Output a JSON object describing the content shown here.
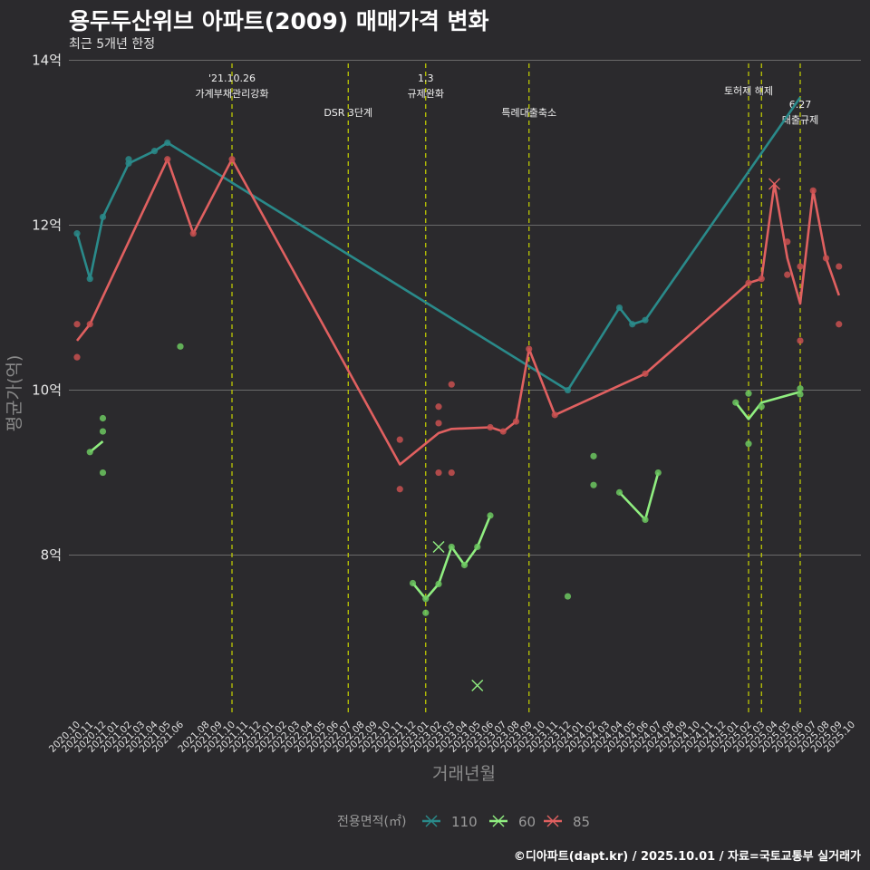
{
  "chart_data": {
    "type": "line",
    "title": "용두두산위브 아파트(2009) 매매가격 변화",
    "subtitle": "최근 5개년 한정",
    "xlabel": "거래년월",
    "ylabel": "평균가(억)",
    "caption": "©디아파트(dapt.kr) / 2025.10.01 / 자료=국토교통부 실거래가",
    "ylim": [
      6.05,
      14.05
    ],
    "yticks": [
      {
        "value": 8,
        "label": "8억"
      },
      {
        "value": 10,
        "label": "10억"
      },
      {
        "value": 12,
        "label": "12억"
      },
      {
        "value": 14,
        "label": "14억"
      }
    ],
    "x_months": [
      "2020.10",
      "2020.11",
      "2020.12",
      "2021.01",
      "2021.02",
      "2021.03",
      "2021.04",
      "2021.05",
      "2021.06",
      "2021.07",
      "2021.08",
      "2021.09",
      "2021.10",
      "2021.11",
      "2021.12",
      "2022.01",
      "2022.02",
      "2022.03",
      "2022.04",
      "2022.05",
      "2022.06",
      "2022.07",
      "2022.08",
      "2022.09",
      "2022.10",
      "2022.11",
      "2022.12",
      "2023.01",
      "2023.02",
      "2023.03",
      "2023.04",
      "2023.05",
      "2023.06",
      "2023.07",
      "2023.08",
      "2023.09",
      "2023.10",
      "2023.11",
      "2023.12",
      "2024.01",
      "2024.02",
      "2024.03",
      "2024.04",
      "2024.05",
      "2024.06",
      "2024.07",
      "2024.08",
      "2024.09",
      "2024.10",
      "2024.11",
      "2024.12",
      "2025.01",
      "2025.02",
      "2025.03",
      "2025.04",
      "2025.05",
      "2025.06",
      "2025.07",
      "2025.08",
      "2025.09",
      "2025.10"
    ],
    "x_tick_labels": [
      "2020.10",
      "2020.11",
      "2020.12",
      "2021.01",
      "2021.02",
      "2021.03",
      "2021.04",
      "2021.05",
      "2021.06",
      "2021.08",
      "2021.09",
      "2021.10",
      "2021.11",
      "2021.12",
      "2022.01",
      "2022.02",
      "2022.03",
      "2022.04",
      "2022.05",
      "2022.06",
      "2022.07",
      "2022.08",
      "2022.09",
      "2022.10",
      "2022.11",
      "2022.12",
      "2023.01",
      "2023.02",
      "2023.03",
      "2023.04",
      "2023.05",
      "2023.06",
      "2023.07",
      "2023.08",
      "2023.09",
      "2023.10",
      "2023.11",
      "2023.12",
      "2024.01",
      "2024.02",
      "2024.03",
      "2024.04",
      "2024.05",
      "2024.06",
      "2024.07",
      "2024.08",
      "2024.09",
      "2024.10",
      "2024.11",
      "2024.12",
      "2025.01",
      "2025.02",
      "2025.03",
      "2025.04",
      "2025.05",
      "2025.06",
      "2025.07",
      "2025.08",
      "2025.09",
      "2025.10"
    ],
    "events": [
      {
        "month": "2021.10",
        "lines": [
          "'21.10.26",
          "가계부채관리강화"
        ],
        "level": 0
      },
      {
        "month": "2022.07",
        "lines": [
          "DSR 3단계"
        ],
        "level": 2
      },
      {
        "month": "2023.01",
        "lines": [
          "1.3",
          "규제완화"
        ],
        "level": 0
      },
      {
        "month": "2023.09",
        "lines": [
          "특례대출축소"
        ],
        "level": 2
      },
      {
        "month": "2025.02",
        "lines": [
          "토허제 해제"
        ],
        "level": 1
      },
      {
        "month": "2025.03",
        "lines": [],
        "level": 1
      },
      {
        "month": "2025.06",
        "lines": [
          "6.27",
          "대출규제"
        ],
        "level": 3
      }
    ],
    "series": [
      {
        "name": "110",
        "color": "#2a8a8a",
        "line": [
          {
            "x": "2020.10",
            "y": 11.9
          },
          {
            "x": "2020.11",
            "y": 11.35
          },
          {
            "x": "2020.12",
            "y": 12.1
          },
          {
            "x": "2021.02",
            "y": 12.75
          },
          {
            "x": "2021.04",
            "y": 12.9
          },
          {
            "x": "2021.05",
            "y": 13.0
          },
          {
            "x": "2023.12",
            "y": 10.0
          },
          {
            "x": "2024.04",
            "y": 11.0
          },
          {
            "x": "2024.05",
            "y": 10.8
          },
          {
            "x": "2024.06",
            "y": 10.85
          },
          {
            "x": "2025.06",
            "y": 13.55
          }
        ],
        "points": [
          {
            "x": "2020.10",
            "y": 11.9
          },
          {
            "x": "2020.11",
            "y": 11.35
          },
          {
            "x": "2020.12",
            "y": 12.1
          },
          {
            "x": "2021.02",
            "y": 12.8
          },
          {
            "x": "2021.02",
            "y": 12.75
          },
          {
            "x": "2021.04",
            "y": 12.9
          },
          {
            "x": "2021.05",
            "y": 13.0
          },
          {
            "x": "2023.12",
            "y": 10.0
          },
          {
            "x": "2024.04",
            "y": 11.0
          },
          {
            "x": "2024.05",
            "y": 10.8
          },
          {
            "x": "2024.06",
            "y": 10.85
          }
        ],
        "crosses": []
      },
      {
        "name": "60",
        "color": "#90ee80",
        "line_segments": [
          [
            {
              "x": "2020.11",
              "y": 9.25
            },
            {
              "x": "2020.12",
              "y": 9.38
            }
          ],
          [
            {
              "x": "2022.12",
              "y": 7.66
            },
            {
              "x": "2023.01",
              "y": 7.47
            },
            {
              "x": "2023.02",
              "y": 7.65
            },
            {
              "x": "2023.03",
              "y": 8.1
            },
            {
              "x": "2023.04",
              "y": 7.88
            },
            {
              "x": "2023.05",
              "y": 8.1
            },
            {
              "x": "2023.06",
              "y": 8.48
            }
          ],
          [
            {
              "x": "2024.04",
              "y": 8.76
            },
            {
              "x": "2024.06",
              "y": 8.43
            },
            {
              "x": "2024.07",
              "y": 9.0
            }
          ],
          [
            {
              "x": "2025.01",
              "y": 9.85
            },
            {
              "x": "2025.02",
              "y": 9.65
            },
            {
              "x": "2025.03",
              "y": 9.85
            },
            {
              "x": "2025.06",
              "y": 9.98
            }
          ]
        ],
        "points": [
          {
            "x": "2020.11",
            "y": 9.25
          },
          {
            "x": "2020.12",
            "y": 9.5
          },
          {
            "x": "2020.12",
            "y": 9.66
          },
          {
            "x": "2020.12",
            "y": 9.0
          },
          {
            "x": "2021.06",
            "y": 10.53
          },
          {
            "x": "2022.12",
            "y": 7.66
          },
          {
            "x": "2023.01",
            "y": 7.47
          },
          {
            "x": "2023.01",
            "y": 7.3
          },
          {
            "x": "2023.02",
            "y": 7.65
          },
          {
            "x": "2023.03",
            "y": 8.1
          },
          {
            "x": "2023.04",
            "y": 7.88
          },
          {
            "x": "2023.05",
            "y": 8.1
          },
          {
            "x": "2023.06",
            "y": 8.48
          },
          {
            "x": "2023.12",
            "y": 7.5
          },
          {
            "x": "2024.02",
            "y": 9.2
          },
          {
            "x": "2024.02",
            "y": 8.85
          },
          {
            "x": "2024.04",
            "y": 8.76
          },
          {
            "x": "2024.06",
            "y": 8.43
          },
          {
            "x": "2024.07",
            "y": 9.0
          },
          {
            "x": "2025.01",
            "y": 9.85
          },
          {
            "x": "2025.02",
            "y": 9.96
          },
          {
            "x": "2025.02",
            "y": 9.35
          },
          {
            "x": "2025.03",
            "y": 9.8
          },
          {
            "x": "2025.06",
            "y": 10.02
          },
          {
            "x": "2025.06",
            "y": 9.95
          }
        ],
        "crosses": [
          {
            "x": "2023.02",
            "y": 8.1
          },
          {
            "x": "2023.05",
            "y": 6.42
          }
        ]
      },
      {
        "name": "85",
        "color": "#e06060",
        "line": [
          {
            "x": "2020.10",
            "y": 10.6
          },
          {
            "x": "2020.11",
            "y": 10.8
          },
          {
            "x": "2021.05",
            "y": 12.8
          },
          {
            "x": "2021.07",
            "y": 11.9
          },
          {
            "x": "2021.10",
            "y": 12.8
          },
          {
            "x": "2022.11",
            "y": 9.1
          },
          {
            "x": "2023.02",
            "y": 9.48
          },
          {
            "x": "2023.03",
            "y": 9.53
          },
          {
            "x": "2023.06",
            "y": 9.55
          },
          {
            "x": "2023.07",
            "y": 9.5
          },
          {
            "x": "2023.08",
            "y": 9.62
          },
          {
            "x": "2023.09",
            "y": 10.5
          },
          {
            "x": "2023.11",
            "y": 9.7
          },
          {
            "x": "2024.06",
            "y": 10.2
          },
          {
            "x": "2025.02",
            "y": 11.3
          },
          {
            "x": "2025.03",
            "y": 11.35
          },
          {
            "x": "2025.04",
            "y": 12.5
          },
          {
            "x": "2025.05",
            "y": 11.6
          },
          {
            "x": "2025.06",
            "y": 11.05
          },
          {
            "x": "2025.07",
            "y": 12.42
          },
          {
            "x": "2025.08",
            "y": 11.6
          },
          {
            "x": "2025.09",
            "y": 11.15
          }
        ],
        "points": [
          {
            "x": "2020.10",
            "y": 10.8
          },
          {
            "x": "2020.10",
            "y": 10.4
          },
          {
            "x": "2020.11",
            "y": 10.8
          },
          {
            "x": "2021.05",
            "y": 12.8
          },
          {
            "x": "2021.07",
            "y": 11.9
          },
          {
            "x": "2021.10",
            "y": 12.8
          },
          {
            "x": "2022.11",
            "y": 9.4
          },
          {
            "x": "2022.11",
            "y": 8.8
          },
          {
            "x": "2023.02",
            "y": 9.8
          },
          {
            "x": "2023.02",
            "y": 9.6
          },
          {
            "x": "2023.02",
            "y": 9.0
          },
          {
            "x": "2023.03",
            "y": 10.07
          },
          {
            "x": "2023.03",
            "y": 9.0
          },
          {
            "x": "2023.06",
            "y": 9.55
          },
          {
            "x": "2023.07",
            "y": 9.5
          },
          {
            "x": "2023.08",
            "y": 9.62
          },
          {
            "x": "2023.09",
            "y": 10.5
          },
          {
            "x": "2023.11",
            "y": 9.7
          },
          {
            "x": "2024.06",
            "y": 10.2
          },
          {
            "x": "2025.02",
            "y": 11.3
          },
          {
            "x": "2025.03",
            "y": 11.35
          },
          {
            "x": "2025.05",
            "y": 11.8
          },
          {
            "x": "2025.05",
            "y": 11.4
          },
          {
            "x": "2025.06",
            "y": 11.5
          },
          {
            "x": "2025.06",
            "y": 10.6
          },
          {
            "x": "2025.07",
            "y": 12.42
          },
          {
            "x": "2025.08",
            "y": 11.6
          },
          {
            "x": "2025.09",
            "y": 11.5
          },
          {
            "x": "2025.09",
            "y": 10.8
          }
        ],
        "crosses": [
          {
            "x": "2025.04",
            "y": 12.5
          }
        ]
      }
    ],
    "legend": {
      "title": "전용면적(㎡)",
      "items": [
        "110",
        "60",
        "85"
      ]
    }
  },
  "colors": {
    "background": "#2b2a2d",
    "grid": "#6a6a6a",
    "event_line": "#c8d400"
  }
}
